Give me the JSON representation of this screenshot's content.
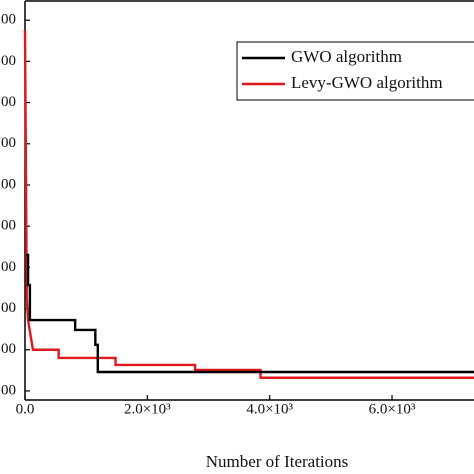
{
  "chart_data": {
    "type": "line",
    "xlabel": "Number of Iterations",
    "xlim": [
      0,
      7340
    ],
    "xticks": [
      {
        "value": 0,
        "label": "0.0"
      },
      {
        "value": 2000,
        "label": "2.0×10³"
      },
      {
        "value": 4000,
        "label": "4.0×10³"
      },
      {
        "value": 6000,
        "label": "6.0×10³"
      }
    ],
    "ylim": [
      0.78,
      10.49
    ],
    "yticks": [
      {
        "value": 1,
        "label": "00"
      },
      {
        "value": 2,
        "label": "00"
      },
      {
        "value": 3,
        "label": "00"
      },
      {
        "value": 4,
        "label": "00"
      },
      {
        "value": 5,
        "label": "00"
      },
      {
        "value": 6,
        "label": "00"
      },
      {
        "value": 7,
        "label": "00"
      },
      {
        "value": 8,
        "label": "00"
      },
      {
        "value": 9,
        "label": "00"
      },
      {
        "value": 10,
        "label": "00"
      }
    ],
    "legend": "upper right",
    "series": [
      {
        "name": "GWO algorithm",
        "color": "#000000",
        "x": [
          20,
          50,
          50,
          80,
          80,
          820,
          820,
          1150,
          1150,
          1190,
          1190,
          7340
        ],
        "values": [
          4.3,
          4.3,
          3.57,
          3.57,
          2.72,
          2.72,
          2.48,
          2.48,
          2.12,
          2.12,
          1.46,
          1.46
        ]
      },
      {
        "name": "Levy-GWO algorithm",
        "color": "#e0191e",
        "x": [
          0,
          30,
          50,
          130,
          550,
          550,
          1480,
          1480,
          2780,
          2780,
          3850,
          3850,
          7340
        ],
        "values": [
          9.76,
          3.21,
          2.72,
          2.0,
          2.0,
          1.8,
          1.8,
          1.63,
          1.63,
          1.51,
          1.51,
          1.32,
          1.32
        ]
      }
    ]
  }
}
